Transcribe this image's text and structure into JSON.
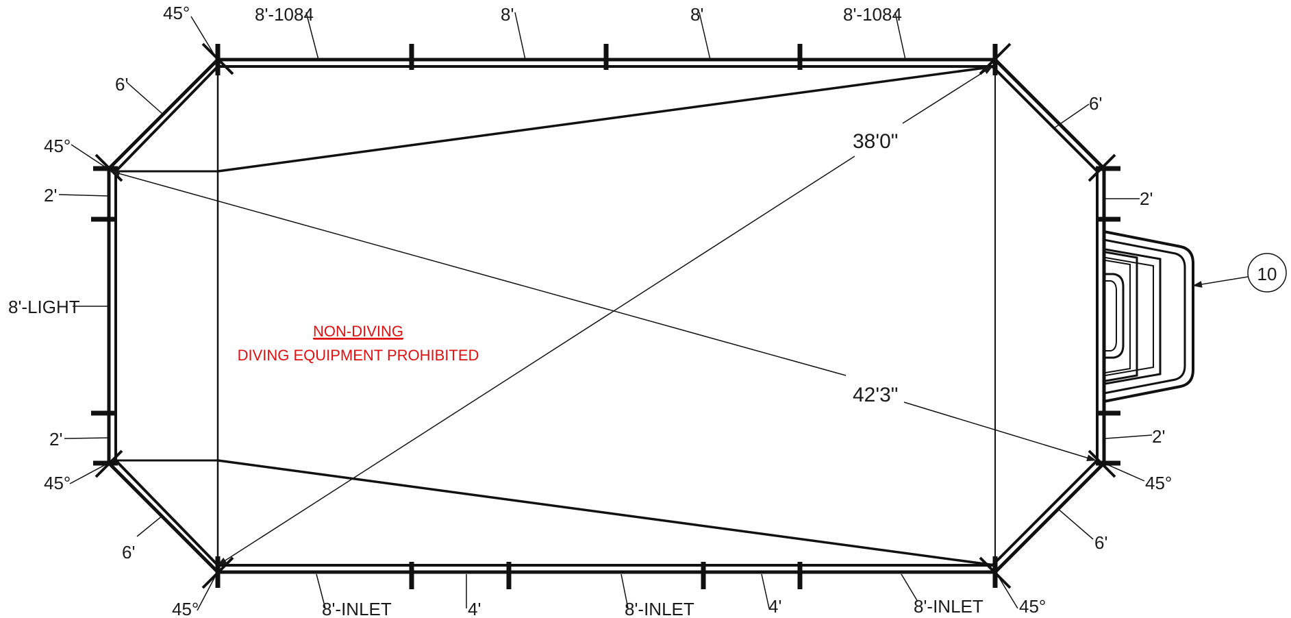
{
  "notes": {
    "line1": "NON-DIVING",
    "line2": "DIVING EQUIPMENT PROHIBITED",
    "color": "#e01010"
  },
  "dimensions": {
    "diagonal_long": "42'3\"",
    "diagonal_short": "38'0\""
  },
  "callout": {
    "number": "10"
  },
  "top_walls": {
    "corner_left_angle": "45°",
    "panel_1": "8'-1084",
    "panel_2": "8'",
    "panel_3": "8'",
    "panel_4": "8'-1084"
  },
  "left_walls": {
    "angle_upper": "45°",
    "angled_upper": "6'",
    "panel_upper": "2'",
    "panel_middle": "8'-LIGHT",
    "panel_lower": "2'",
    "angle_lower": "45°",
    "angled_lower": "6'"
  },
  "right_walls": {
    "angled_upper": "6'",
    "panel_upper": "2'",
    "panel_lower": "2'",
    "angle_lower": "45°",
    "angled_lower": "6'"
  },
  "bottom_walls": {
    "corner_left_angle": "45°",
    "panel_1": "8'-INLET",
    "panel_2": "4'",
    "panel_3": "8'-INLET",
    "panel_4": "4'",
    "panel_5": "8'-INLET",
    "corner_right_angle": "45°"
  }
}
